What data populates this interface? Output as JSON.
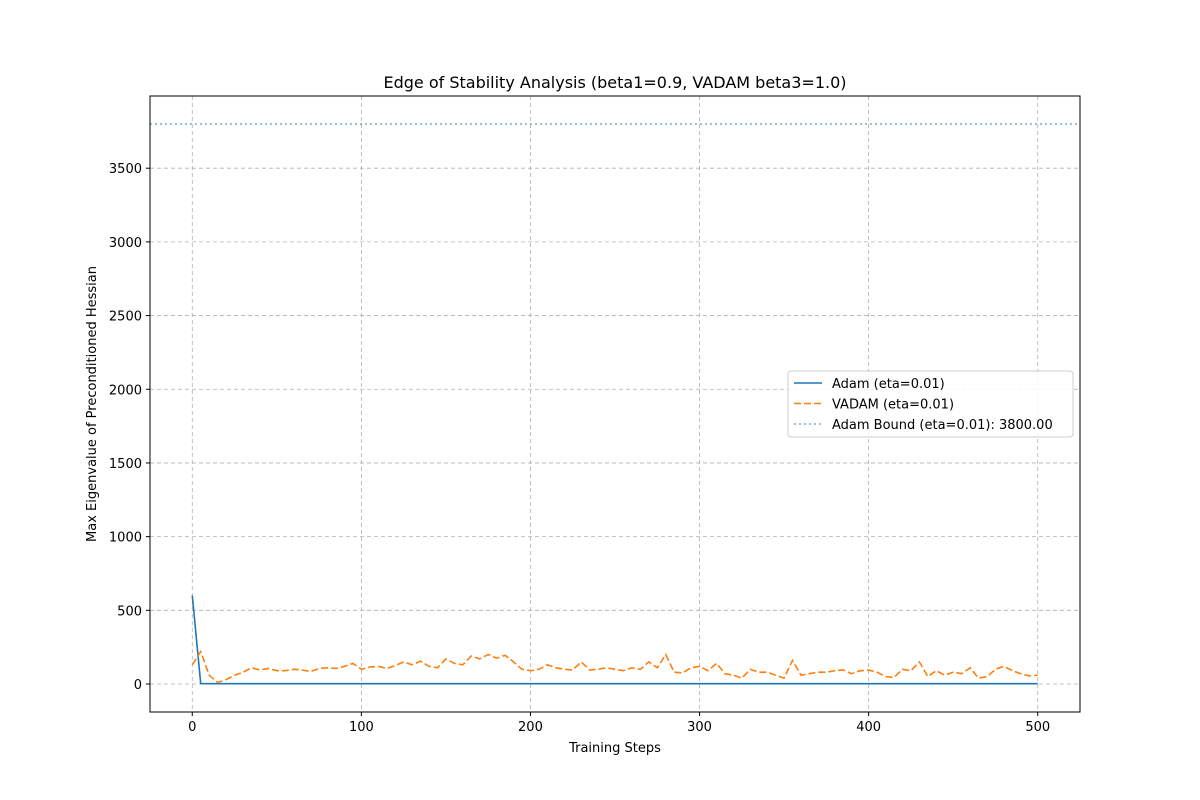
{
  "chart_data": {
    "type": "line",
    "title": "Edge of Stability Analysis (beta1=0.9, VADAM beta3=1.0)",
    "xlabel": "Training Steps",
    "ylabel": "Max Eigenvalue of Preconditioned Hessian",
    "xlim": [
      -25,
      525
    ],
    "ylim": [
      -190,
      3990
    ],
    "xticks": [
      0,
      100,
      200,
      300,
      400,
      500
    ],
    "yticks": [
      0,
      500,
      1000,
      1500,
      2000,
      2500,
      3000,
      3500
    ],
    "grid": true,
    "legend_position": "center-right",
    "series": [
      {
        "name": "Adam (eta=0.01)",
        "style": "solid",
        "color": "#1f77b4",
        "x": [
          0,
          5,
          10,
          15,
          20,
          25,
          30,
          35,
          40,
          45,
          50,
          55,
          60,
          65,
          70,
          75,
          80,
          85,
          90,
          95,
          100,
          105,
          110,
          115,
          120,
          125,
          130,
          135,
          140,
          145,
          150,
          155,
          160,
          165,
          170,
          175,
          180,
          185,
          190,
          195,
          200,
          205,
          210,
          215,
          220,
          225,
          230,
          235,
          240,
          245,
          250,
          255,
          260,
          265,
          270,
          275,
          280,
          285,
          290,
          295,
          300,
          305,
          310,
          315,
          320,
          325,
          330,
          335,
          340,
          345,
          350,
          355,
          360,
          365,
          370,
          375,
          380,
          385,
          390,
          395,
          400,
          405,
          410,
          415,
          420,
          425,
          430,
          435,
          440,
          445,
          450,
          455,
          460,
          465,
          470,
          475,
          480,
          485,
          490,
          495,
          500
        ],
        "y": [
          600,
          3,
          2,
          2,
          2,
          2,
          2,
          2,
          2,
          2,
          2,
          2,
          2,
          2,
          2,
          2,
          2,
          2,
          2,
          2,
          2,
          2,
          2,
          2,
          2,
          2,
          2,
          2,
          2,
          2,
          2,
          2,
          2,
          2,
          2,
          2,
          2,
          2,
          2,
          2,
          2,
          2,
          2,
          2,
          2,
          2,
          2,
          2,
          2,
          2,
          2,
          2,
          2,
          2,
          2,
          2,
          2,
          2,
          2,
          2,
          2,
          2,
          2,
          2,
          2,
          2,
          2,
          2,
          2,
          2,
          2,
          2,
          2,
          2,
          2,
          2,
          2,
          2,
          2,
          2,
          2,
          2,
          2,
          2,
          2,
          2,
          2,
          2,
          2,
          2,
          2,
          2,
          2,
          2,
          2,
          2,
          2,
          2,
          2,
          2,
          2
        ]
      },
      {
        "name": "VADAM (eta=0.01)",
        "style": "dashed",
        "color": "#ff7f0e",
        "x": [
          0,
          5,
          10,
          15,
          20,
          25,
          30,
          35,
          40,
          45,
          50,
          55,
          60,
          65,
          70,
          75,
          80,
          85,
          90,
          95,
          100,
          105,
          110,
          115,
          120,
          125,
          130,
          135,
          140,
          145,
          150,
          155,
          160,
          165,
          170,
          175,
          180,
          185,
          190,
          195,
          200,
          205,
          210,
          215,
          220,
          225,
          230,
          235,
          240,
          245,
          250,
          255,
          260,
          265,
          270,
          275,
          280,
          285,
          290,
          295,
          300,
          305,
          310,
          315,
          320,
          325,
          330,
          335,
          340,
          345,
          350,
          355,
          360,
          365,
          370,
          375,
          380,
          385,
          390,
          395,
          400,
          405,
          410,
          415,
          420,
          425,
          430,
          435,
          440,
          445,
          450,
          455,
          460,
          465,
          470,
          475,
          480,
          485,
          490,
          495,
          500
        ],
        "y": [
          130,
          220,
          60,
          10,
          30,
          60,
          80,
          110,
          95,
          105,
          90,
          90,
          100,
          95,
          85,
          105,
          110,
          105,
          120,
          140,
          100,
          115,
          120,
          105,
          125,
          150,
          130,
          155,
          120,
          110,
          170,
          140,
          130,
          190,
          170,
          200,
          175,
          195,
          150,
          100,
          90,
          100,
          130,
          110,
          100,
          95,
          150,
          95,
          100,
          110,
          100,
          90,
          110,
          100,
          150,
          110,
          200,
          80,
          75,
          110,
          120,
          90,
          140,
          70,
          60,
          40,
          100,
          80,
          80,
          60,
          40,
          160,
          60,
          70,
          80,
          80,
          90,
          95,
          70,
          90,
          95,
          80,
          50,
          45,
          100,
          90,
          150,
          50,
          90,
          60,
          80,
          70,
          110,
          40,
          50,
          100,
          120,
          90,
          70,
          55,
          60
        ]
      },
      {
        "name": "Adam Bound (eta=0.01): 3800.00",
        "style": "dotted",
        "color": "#1f77b4",
        "hline": 3800
      }
    ]
  }
}
